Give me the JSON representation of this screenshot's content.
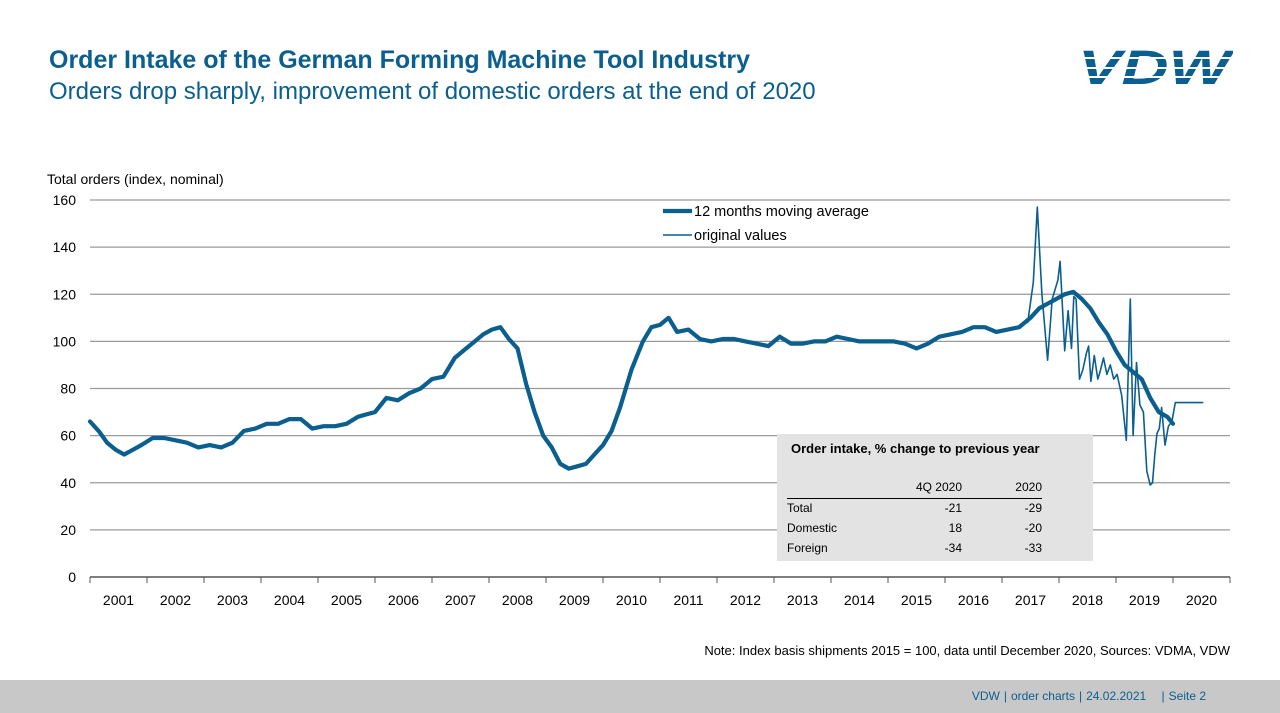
{
  "header": {
    "title": "Order Intake of the German Forming Machine Tool Industry",
    "subtitle": "Orders drop sharply, improvement of domestic orders at the end of 2020",
    "logo_text": "VDW"
  },
  "colors": {
    "brand": "#0b5f8f",
    "grid": "#9a9a9a",
    "footer_bg": "#c8c8c8",
    "table_bg": "#e3e3e3"
  },
  "chart_data": {
    "type": "line",
    "title": "Order Intake of the German Forming Machine Tool Industry",
    "ylabel": "Total orders (index, nominal)",
    "xlabel": "",
    "ylim": [
      0,
      160
    ],
    "yticks": [
      0,
      20,
      40,
      60,
      80,
      100,
      120,
      140,
      160
    ],
    "xlim": [
      2001,
      2021
    ],
    "categories": [
      "2001",
      "2002",
      "2003",
      "2004",
      "2005",
      "2006",
      "2007",
      "2008",
      "2009",
      "2010",
      "2011",
      "2012",
      "2013",
      "2014",
      "2015",
      "2016",
      "2017",
      "2018",
      "2019",
      "2020"
    ],
    "legend_position": "top-center",
    "series": [
      {
        "name": "12 months moving average",
        "style": "thick",
        "x": [
          2001.0,
          2001.15,
          2001.3,
          2001.45,
          2001.6,
          2001.75,
          2001.9,
          2002.1,
          2002.3,
          2002.5,
          2002.7,
          2002.9,
          2003.1,
          2003.3,
          2003.5,
          2003.7,
          2003.9,
          2004.1,
          2004.3,
          2004.5,
          2004.7,
          2004.9,
          2005.1,
          2005.3,
          2005.5,
          2005.7,
          2005.85,
          2006.0,
          2006.2,
          2006.4,
          2006.6,
          2006.8,
          2007.0,
          2007.2,
          2007.4,
          2007.6,
          2007.75,
          2007.9,
          2008.05,
          2008.2,
          2008.35,
          2008.5,
          2008.65,
          2008.8,
          2008.95,
          2009.1,
          2009.25,
          2009.4,
          2009.55,
          2009.7,
          2009.85,
          2010.0,
          2010.15,
          2010.3,
          2010.5,
          2010.7,
          2010.85,
          2011.0,
          2011.15,
          2011.3,
          2011.5,
          2011.7,
          2011.9,
          2012.1,
          2012.3,
          2012.5,
          2012.7,
          2012.9,
          2013.1,
          2013.3,
          2013.5,
          2013.7,
          2013.9,
          2014.1,
          2014.3,
          2014.5,
          2014.7,
          2014.9,
          2015.1,
          2015.3,
          2015.5,
          2015.7,
          2015.9,
          2016.1,
          2016.3,
          2016.5,
          2016.7,
          2016.9,
          2017.1,
          2017.3,
          2017.5,
          2017.65,
          2017.8,
          2017.95,
          2018.1,
          2018.25,
          2018.4,
          2018.55,
          2018.7,
          2018.85,
          2019.0,
          2019.15,
          2019.3,
          2019.45,
          2019.6,
          2019.75,
          2019.9,
          2020.0
        ],
        "values": [
          66,
          62,
          57,
          54,
          52,
          54,
          56,
          59,
          59,
          58,
          57,
          55,
          56,
          55,
          57,
          62,
          63,
          65,
          65,
          67,
          67,
          63,
          64,
          64,
          65,
          68,
          69,
          70,
          76,
          75,
          78,
          80,
          84,
          85,
          93,
          97,
          100,
          103,
          105,
          106,
          101,
          97,
          82,
          70,
          60,
          55,
          48,
          46,
          47,
          48,
          52,
          56,
          62,
          72,
          88,
          100,
          106,
          107,
          110,
          104,
          105,
          101,
          100,
          101,
          101,
          100,
          99,
          98,
          102,
          99,
          99,
          100,
          100,
          102,
          101,
          100,
          100,
          100,
          100,
          99,
          97,
          99,
          102,
          103,
          104,
          106,
          106,
          104,
          105,
          106,
          110,
          114,
          116,
          118,
          120,
          121,
          118,
          114,
          108,
          103,
          96,
          90,
          87,
          84,
          76,
          70,
          68,
          65
        ]
      },
      {
        "name": "original values",
        "style": "thin",
        "x": [
          2017.45,
          2017.55,
          2017.62,
          2017.7,
          2017.8,
          2017.88,
          2017.98,
          2018.02,
          2018.1,
          2018.16,
          2018.22,
          2018.26,
          2018.3,
          2018.36,
          2018.42,
          2018.48,
          2018.52,
          2018.56,
          2018.62,
          2018.68,
          2018.72,
          2018.78,
          2018.84,
          2018.9,
          2018.96,
          2019.02,
          2019.1,
          2019.18,
          2019.25,
          2019.3,
          2019.36,
          2019.42,
          2019.48,
          2019.54,
          2019.6,
          2019.64,
          2019.68,
          2019.72,
          2019.76,
          2019.8,
          2019.86,
          2019.92,
          2019.98,
          2020.04,
          2020.1,
          2020.16,
          2020.22,
          2020.28,
          2020.34,
          2020.4,
          2020.46,
          2020.52
        ],
        "values": [
          108,
          125,
          157,
          120,
          92,
          118,
          126,
          134,
          96,
          113,
          97,
          119,
          118,
          84,
          88,
          95,
          98,
          83,
          94,
          84,
          87,
          93,
          86,
          90,
          84,
          86,
          77,
          58,
          118,
          60,
          91,
          73,
          70,
          45,
          39,
          40,
          52,
          61,
          63,
          72,
          56,
          64,
          66,
          74,
          74,
          74,
          74,
          74,
          74,
          74,
          74,
          74
        ]
      }
    ]
  },
  "table": {
    "title": "Order intake, % change to previous year",
    "columns": [
      "",
      "4Q 2020",
      "2020"
    ],
    "rows": [
      {
        "label": "Total",
        "q4": "-21",
        "year": "-29"
      },
      {
        "label": "Domestic",
        "q4": "18",
        "year": "-20"
      },
      {
        "label": "Foreign",
        "q4": "-34",
        "year": "-33"
      }
    ]
  },
  "note": "Note: Index basis shipments 2015 = 100, data until December 2020, Sources: VDMA, VDW",
  "footer": {
    "org": "VDW",
    "section": "order charts",
    "date": "24.02.2021",
    "page": "Seite  2"
  }
}
